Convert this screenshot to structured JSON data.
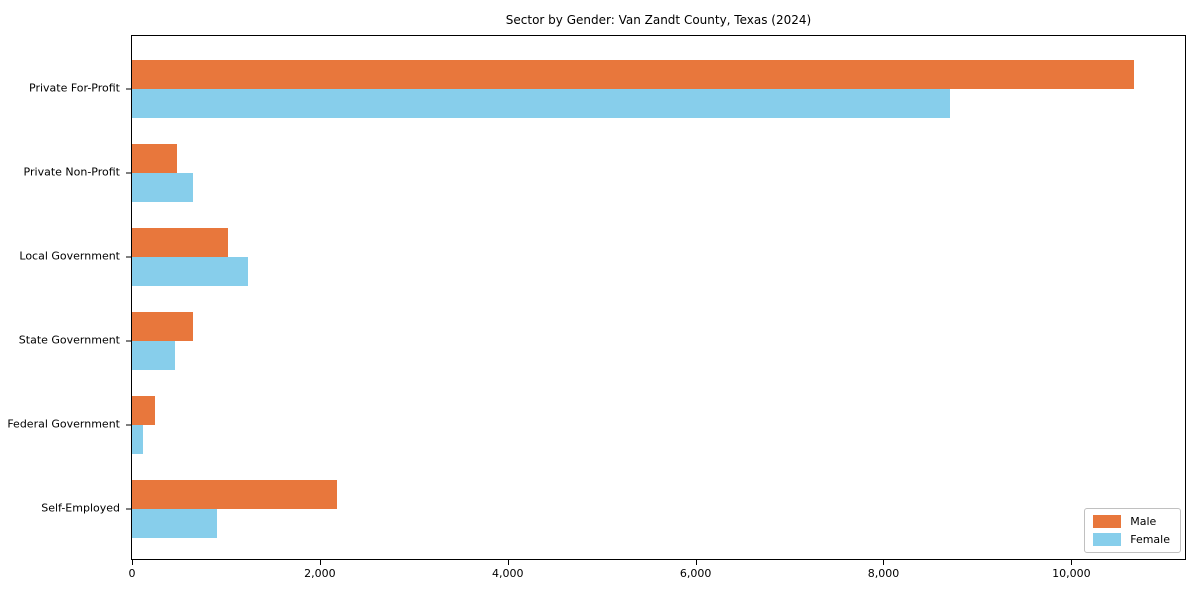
{
  "title": "Sector by Gender: Van Zandt County, Texas (2024)",
  "colors": {
    "male": "#E8773C",
    "female": "#87CEEB",
    "spine": "#000000",
    "legend_border": "#c0c0c0",
    "background": "#ffffff"
  },
  "chart_data": {
    "type": "bar",
    "orientation": "horizontal",
    "title": "Sector by Gender: Van Zandt County, Texas (2024)",
    "xlabel": "",
    "ylabel": "",
    "categories": [
      "Private For-Profit",
      "Private Non-Profit",
      "Local Government",
      "State Government",
      "Federal Government",
      "Self-Employed"
    ],
    "series": [
      {
        "name": "Male",
        "color": "#E8773C",
        "values": [
          10670,
          480,
          1020,
          645,
          240,
          2180
        ]
      },
      {
        "name": "Female",
        "color": "#87CEEB",
        "values": [
          8710,
          650,
          1240,
          460,
          120,
          900
        ]
      }
    ],
    "xlim": [
      0,
      11210
    ],
    "x_ticks": [
      {
        "value": 0,
        "label": "0"
      },
      {
        "value": 2000,
        "label": "2,000"
      },
      {
        "value": 4000,
        "label": "4,000"
      },
      {
        "value": 6000,
        "label": "6,000"
      },
      {
        "value": 8000,
        "label": "8,000"
      },
      {
        "value": 10000,
        "label": "10,000"
      }
    ],
    "grid": false,
    "legend_position": "lower right"
  }
}
